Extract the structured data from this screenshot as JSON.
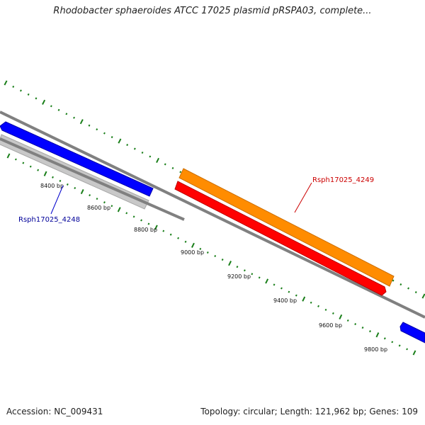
{
  "title": "Rhodobacter sphaeroides ATCC 17025 plasmid pRSPA03, complete...",
  "footer": {
    "accession": "Accession: NC_009431",
    "summary": "Topology: circular; Length: 121,962 bp; Genes: 109"
  },
  "ruler": {
    "labels": [
      "8400 bp",
      "8600 bp",
      "8800 bp",
      "9000 bp",
      "9200 bp",
      "9400 bp",
      "9600 bp",
      "9800 bp"
    ]
  },
  "genes": [
    {
      "id": "Rsph17025_4248",
      "label": "Rsph17025_4248",
      "strand": "reverse",
      "color": "#0000ff",
      "label_color": "#000099"
    },
    {
      "id": "Rsph17025_4249",
      "label": "Rsph17025_4249",
      "strand": "forward",
      "color": "#ff0000",
      "label_color": "#cc0000"
    }
  ],
  "colors": {
    "backbone": "#808080",
    "tick": "#1a7f1a",
    "cds_forward": "#ff8c00",
    "cds_reverse": "#c8c8c8",
    "gene_blue": "#0000ff",
    "gene_red": "#ff0000"
  }
}
